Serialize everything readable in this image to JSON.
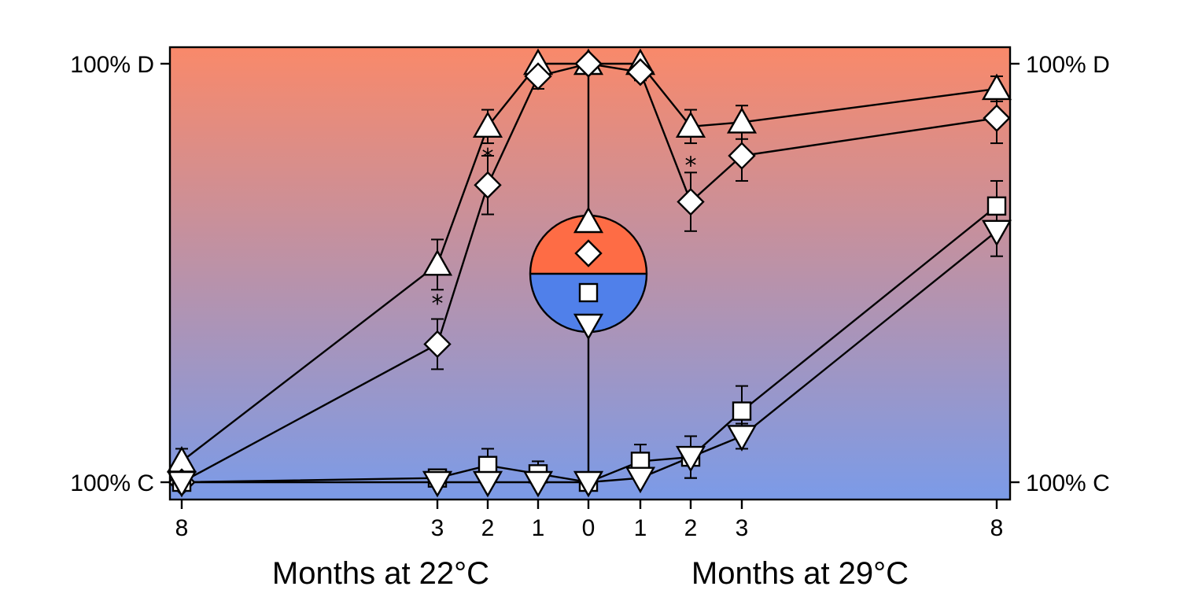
{
  "chart_data": {
    "type": "line",
    "y_scale": "percent D (0 = 100% C, 100 = 100% D)",
    "y_tick_labels": [
      "100% C",
      "100% D"
    ],
    "y_range": [
      0,
      100
    ],
    "x_labels_left": "Months at 22°C",
    "x_labels_right": "Months at 29°C",
    "x_ticks": [
      {
        "pos": -8,
        "label": "8"
      },
      {
        "pos": -3,
        "label": "3"
      },
      {
        "pos": -2,
        "label": "2"
      },
      {
        "pos": -1,
        "label": "1"
      },
      {
        "pos": 0,
        "label": "0"
      },
      {
        "pos": 1,
        "label": "1"
      },
      {
        "pos": 2,
        "label": "2"
      },
      {
        "pos": 3,
        "label": "3"
      },
      {
        "pos": 8,
        "label": "8"
      }
    ],
    "series": [
      {
        "marker": "triangle-up",
        "points": [
          {
            "x": -8,
            "y": 5,
            "err": 3
          },
          {
            "x": -3,
            "y": 52,
            "err": 6
          },
          {
            "x": -2,
            "y": 85,
            "err": 4
          },
          {
            "x": -1,
            "y": 100,
            "err": 0
          },
          {
            "x": 0,
            "y": 100,
            "err": 0
          },
          {
            "x": 1,
            "y": 100,
            "err": 0
          },
          {
            "x": 2,
            "y": 85,
            "err": 4
          },
          {
            "x": 3,
            "y": 86,
            "err": 4
          },
          {
            "x": 8,
            "y": 94,
            "err": 3
          }
        ]
      },
      {
        "marker": "diamond",
        "points": [
          {
            "x": -8,
            "y": 0,
            "err": 0
          },
          {
            "x": -3,
            "y": 33,
            "err": 6
          },
          {
            "x": -2,
            "y": 71,
            "err": 7
          },
          {
            "x": -1,
            "y": 97,
            "err": 3
          },
          {
            "x": 0,
            "y": 100,
            "err": 0
          },
          {
            "x": 1,
            "y": 98,
            "err": 2
          },
          {
            "x": 2,
            "y": 67,
            "err": 7
          },
          {
            "x": 3,
            "y": 78,
            "err": 6
          },
          {
            "x": 8,
            "y": 87,
            "err": 6
          }
        ]
      },
      {
        "marker": "square",
        "points": [
          {
            "x": -8,
            "y": 0,
            "err": 0
          },
          {
            "x": -3,
            "y": 1,
            "err": 1
          },
          {
            "x": -2,
            "y": 4,
            "err": 4
          },
          {
            "x": -1,
            "y": 2,
            "err": 3
          },
          {
            "x": 0,
            "y": 0,
            "err": 0
          },
          {
            "x": 1,
            "y": 5,
            "err": 4
          },
          {
            "x": 2,
            "y": 6,
            "err": 5
          },
          {
            "x": 3,
            "y": 17,
            "err": 6
          },
          {
            "x": 8,
            "y": 66,
            "err": 6
          }
        ]
      },
      {
        "marker": "triangle-down",
        "points": [
          {
            "x": -8,
            "y": 0,
            "err": 0
          },
          {
            "x": -3,
            "y": 0,
            "err": 0
          },
          {
            "x": -2,
            "y": 0,
            "err": 0
          },
          {
            "x": -1,
            "y": 0,
            "err": 0
          },
          {
            "x": 0,
            "y": 0,
            "err": 0
          },
          {
            "x": 1,
            "y": 1,
            "err": 0
          },
          {
            "x": 2,
            "y": 6,
            "err": 5
          },
          {
            "x": 3,
            "y": 11,
            "err": 3
          },
          {
            "x": 8,
            "y": 60,
            "err": 6
          }
        ]
      }
    ],
    "significance_marks": [
      {
        "x": -3,
        "y": 43,
        "label": "*"
      },
      {
        "x": -2,
        "y": 78,
        "label": "*"
      },
      {
        "x": 2,
        "y": 76,
        "label": "*"
      }
    ],
    "colors": {
      "gradient_top": "#f9896a",
      "gradient_bottom": "#7b9be8",
      "inset_top": "#fe6c45",
      "inset_bottom": "#5080ea"
    }
  }
}
